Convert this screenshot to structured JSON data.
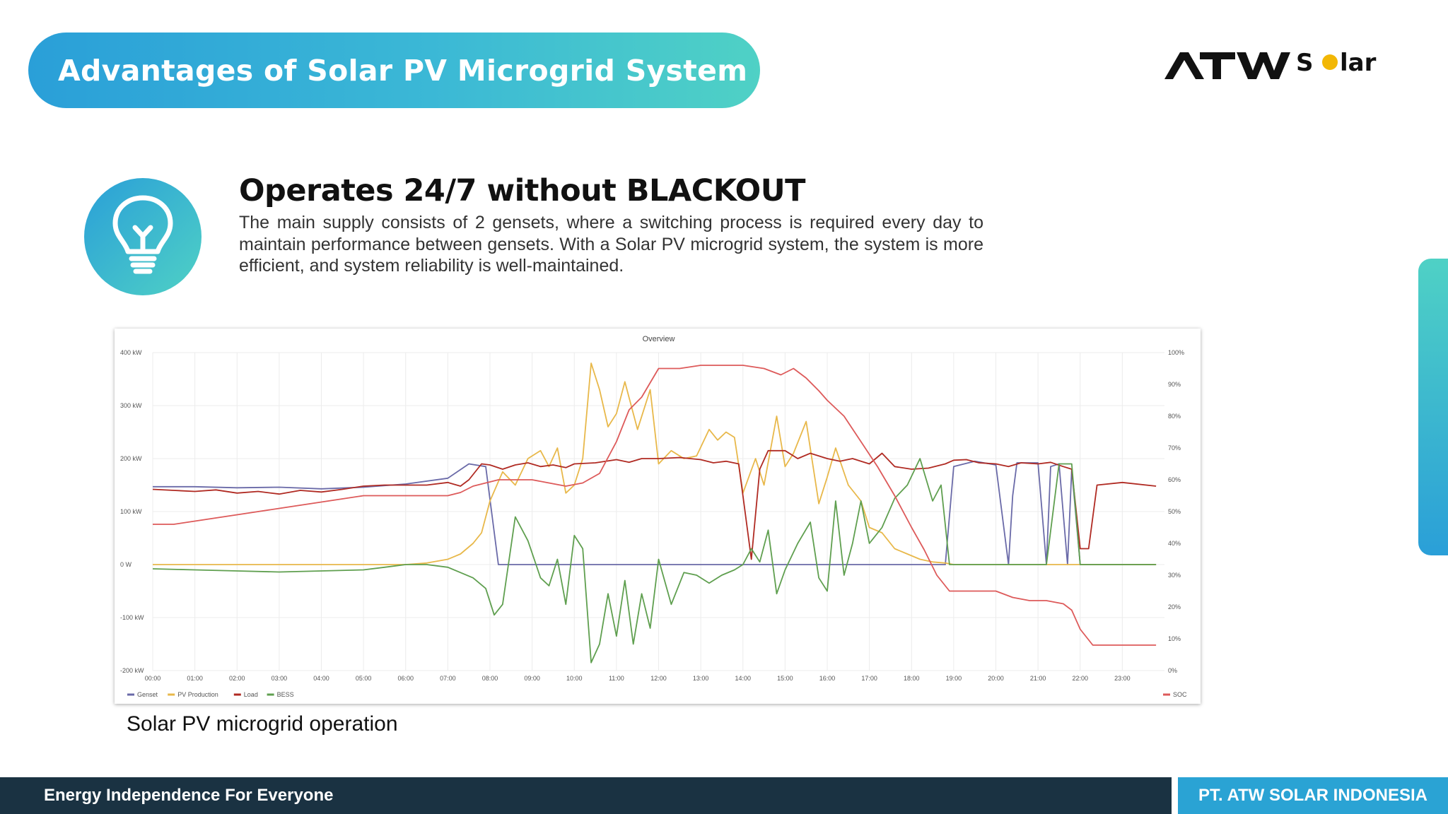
{
  "header": {
    "title": "Advantages of Solar PV Microgrid System",
    "logo_text_main": "ATW",
    "logo_text_sub": "S lar"
  },
  "feature": {
    "icon": "lightbulb-icon",
    "heading": "Operates 24/7 without BLACKOUT",
    "description": "The main supply consists of 2 gensets, where a switching process is required every day to maintain performance between gensets. With a Solar PV microgrid system, the system is more efficient, and system reliability is well-maintained."
  },
  "caption": "Solar PV microgrid operation",
  "footer": {
    "tagline": "Energy Independence For Everyone",
    "company": "PT. ATW SOLAR INDONESIA"
  },
  "colors": {
    "accent_start": "#2a9fd8",
    "accent_end": "#4fd1c5",
    "footer_dark": "#1a3242",
    "footer_blue": "#2aa3d4",
    "genset": "#6a6aa8",
    "pv": "#e8b84a",
    "load": "#b02a22",
    "bess": "#5f9f4f",
    "soc": "#dd5a5a"
  },
  "chart_data": {
    "type": "line",
    "title": "Overview",
    "x_unit": "hours",
    "xlim": [
      0,
      24
    ],
    "ylim": [
      -200,
      400
    ],
    "ylim_right": [
      0,
      100
    ],
    "x_ticks": [
      "00:00",
      "01:00",
      "02:00",
      "03:00",
      "04:00",
      "05:00",
      "06:00",
      "07:00",
      "08:00",
      "09:00",
      "10:00",
      "11:00",
      "12:00",
      "13:00",
      "14:00",
      "15:00",
      "16:00",
      "17:00",
      "18:00",
      "19:00",
      "20:00",
      "21:00",
      "22:00",
      "23:00"
    ],
    "y_ticks": [
      "400 kW",
      "300 kW",
      "200 kW",
      "100 kW",
      "0 W",
      "-100 kW",
      "-200 kW"
    ],
    "y_ticks_right": [
      "100%",
      "90%",
      "80%",
      "70%",
      "60%",
      "50%",
      "40%",
      "30%",
      "20%",
      "10%",
      "0%"
    ],
    "grid": true,
    "legend_left": [
      "Genset",
      "PV Production",
      "Load",
      "BESS"
    ],
    "legend_right": [
      "SOC"
    ],
    "series": [
      {
        "name": "Genset",
        "axis": "left",
        "color": "#6a6aa8",
        "x": [
          0,
          1,
          2,
          3,
          4,
          5,
          6,
          7,
          7.5,
          7.9,
          8.2,
          9,
          10,
          11,
          12,
          13,
          14,
          15,
          16,
          17,
          18,
          18.5,
          18.8,
          19,
          19.5,
          20,
          20.3,
          20.4,
          20.5,
          21,
          21.2,
          21.3,
          21.5,
          21.7,
          21.8,
          22,
          22.2,
          23,
          23.8
        ],
        "y": [
          147,
          147,
          145,
          146,
          143,
          146,
          152,
          163,
          190,
          185,
          0,
          0,
          0,
          0,
          0,
          0,
          0,
          0,
          0,
          0,
          0,
          0,
          0,
          185,
          195,
          188,
          0,
          130,
          192,
          192,
          0,
          185,
          190,
          0,
          180,
          0,
          0,
          0,
          0
        ]
      },
      {
        "name": "PV Production",
        "axis": "left",
        "color": "#e8b84a",
        "x": [
          0,
          1,
          2,
          3,
          4,
          5,
          6,
          6.5,
          7,
          7.3,
          7.6,
          7.8,
          8,
          8.3,
          8.6,
          8.9,
          9.2,
          9.4,
          9.6,
          9.8,
          10,
          10.2,
          10.4,
          10.6,
          10.8,
          11,
          11.2,
          11.5,
          11.8,
          12,
          12.3,
          12.6,
          12.9,
          13.2,
          13.4,
          13.6,
          13.8,
          14,
          14.3,
          14.5,
          14.8,
          15,
          15.2,
          15.5,
          15.8,
          16,
          16.2,
          16.5,
          16.8,
          17,
          17.3,
          17.6,
          17.9,
          18.2,
          18.5,
          18.8,
          19,
          20,
          21,
          22,
          23,
          23.8
        ],
        "y": [
          0,
          0,
          0,
          0,
          0,
          0,
          0,
          3,
          10,
          20,
          40,
          60,
          120,
          175,
          150,
          200,
          215,
          185,
          220,
          135,
          150,
          200,
          380,
          330,
          260,
          285,
          345,
          255,
          330,
          190,
          215,
          200,
          205,
          255,
          235,
          250,
          240,
          135,
          200,
          150,
          280,
          185,
          210,
          270,
          115,
          165,
          220,
          150,
          120,
          70,
          60,
          30,
          20,
          10,
          5,
          3,
          0,
          0,
          0,
          0,
          0,
          0
        ]
      },
      {
        "name": "Load",
        "axis": "left",
        "color": "#b02a22",
        "x": [
          0,
          0.5,
          1,
          1.5,
          2,
          2.5,
          3,
          3.5,
          4,
          4.5,
          5,
          5.5,
          6,
          6.5,
          7,
          7.3,
          7.5,
          7.8,
          8,
          8.3,
          8.6,
          8.9,
          9.2,
          9.5,
          9.8,
          10,
          10.5,
          11,
          11.3,
          11.6,
          12,
          12.5,
          13,
          13.3,
          13.6,
          13.9,
          14.2,
          14.4,
          14.6,
          15,
          15.3,
          15.6,
          16,
          16.3,
          16.6,
          17,
          17.3,
          17.6,
          18,
          18.4,
          18.8,
          19,
          19.3,
          19.6,
          20,
          20.3,
          20.6,
          21,
          21.3,
          21.6,
          21.8,
          22,
          22.2,
          22.4,
          23,
          23.8
        ],
        "y": [
          142,
          140,
          138,
          141,
          135,
          138,
          133,
          140,
          137,
          142,
          148,
          150,
          150,
          150,
          155,
          148,
          160,
          190,
          188,
          180,
          188,
          192,
          185,
          188,
          183,
          190,
          192,
          198,
          193,
          200,
          200,
          202,
          198,
          192,
          195,
          190,
          10,
          180,
          215,
          215,
          200,
          210,
          200,
          195,
          200,
          190,
          210,
          185,
          180,
          182,
          190,
          197,
          198,
          192,
          190,
          185,
          192,
          190,
          193,
          185,
          180,
          30,
          30,
          150,
          155,
          148
        ]
      },
      {
        "name": "BESS",
        "axis": "left",
        "color": "#5f9f4f",
        "x": [
          0,
          1,
          2,
          3,
          4,
          5,
          5.5,
          6,
          6.5,
          7,
          7.3,
          7.6,
          7.9,
          8.1,
          8.3,
          8.6,
          8.9,
          9.2,
          9.4,
          9.6,
          9.8,
          10,
          10.2,
          10.4,
          10.6,
          10.8,
          11,
          11.2,
          11.4,
          11.6,
          11.8,
          12,
          12.3,
          12.6,
          12.9,
          13.2,
          13.5,
          13.8,
          14,
          14.2,
          14.4,
          14.6,
          14.8,
          15,
          15.3,
          15.6,
          15.8,
          16,
          16.2,
          16.4,
          16.6,
          16.8,
          17,
          17.3,
          17.6,
          17.9,
          18.2,
          18.5,
          18.7,
          18.9,
          19,
          19.5,
          20,
          20.2,
          20.3,
          20.5,
          20.8,
          21,
          21.2,
          21.5,
          21.8,
          22,
          22.2,
          23,
          23.8
        ],
        "y": [
          -8,
          -10,
          -12,
          -14,
          -12,
          -10,
          -5,
          0,
          0,
          -5,
          -15,
          -25,
          -45,
          -95,
          -75,
          90,
          45,
          -25,
          -40,
          10,
          -75,
          55,
          30,
          -185,
          -150,
          -55,
          -135,
          -30,
          -150,
          -55,
          -120,
          10,
          -75,
          -15,
          -20,
          -35,
          -20,
          -10,
          0,
          30,
          5,
          65,
          -55,
          -10,
          40,
          80,
          -25,
          -50,
          120,
          -20,
          40,
          120,
          40,
          70,
          125,
          150,
          200,
          120,
          150,
          0,
          0,
          0,
          0,
          0,
          0,
          0,
          0,
          0,
          0,
          190,
          190,
          0,
          0,
          0,
          0
        ]
      },
      {
        "name": "SOC",
        "axis": "right",
        "color": "#dd5a5a",
        "x": [
          0,
          0.5,
          1,
          1.5,
          2,
          2.5,
          3,
          3.5,
          4,
          4.5,
          5,
          5.5,
          6,
          6.5,
          7,
          7.3,
          7.6,
          7.9,
          8.2,
          8.6,
          9,
          9.4,
          9.8,
          10.2,
          10.6,
          11,
          11.3,
          11.6,
          12,
          12.5,
          13,
          13.5,
          14,
          14.5,
          14.9,
          15.2,
          15.5,
          15.8,
          16,
          16.4,
          16.8,
          17.2,
          17.6,
          18,
          18.3,
          18.6,
          18.9,
          19.2,
          19.6,
          20,
          20.4,
          20.8,
          21.2,
          21.6,
          21.8,
          22,
          22.3,
          22.6,
          23,
          23.8
        ],
        "y": [
          46,
          46,
          47,
          48,
          49,
          50,
          51,
          52,
          53,
          54,
          55,
          55,
          55,
          55,
          55,
          56,
          58,
          59,
          60,
          60,
          60,
          59,
          58,
          59,
          62,
          72,
          82,
          86,
          95,
          95,
          96,
          96,
          96,
          95,
          93,
          95,
          92,
          88,
          85,
          80,
          72,
          64,
          55,
          45,
          38,
          30,
          25,
          25,
          25,
          25,
          23,
          22,
          22,
          21,
          19,
          13,
          8,
          8,
          8,
          8
        ]
      }
    ]
  }
}
